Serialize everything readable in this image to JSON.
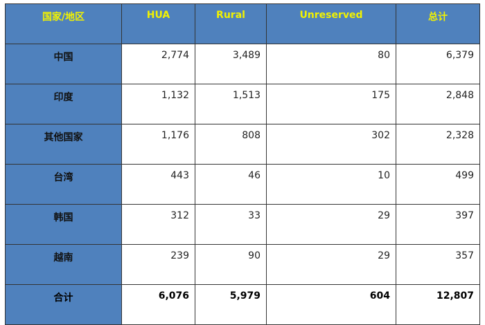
{
  "headers": [
    "国家/地区",
    "HUA",
    "Rural",
    "Unreserved",
    "总计"
  ],
  "rows": [
    {
      "label": "中国",
      "values": [
        "2,774",
        "3,489",
        "80",
        "6,379"
      ]
    },
    {
      "label": "印度",
      "values": [
        "1,132",
        "1,513",
        "175",
        "2,848"
      ]
    },
    {
      "label": "其他国家",
      "values": [
        "1,176",
        "808",
        "302",
        "2,328"
      ]
    },
    {
      "label": "台湾",
      "values": [
        "443",
        "46",
        "10",
        "499"
      ]
    },
    {
      "label": "韩国",
      "values": [
        "312",
        "33",
        "29",
        "397"
      ]
    },
    {
      "label": "越南",
      "values": [
        "239",
        "90",
        "29",
        "357"
      ]
    }
  ],
  "total": {
    "label": "合计",
    "values": [
      "6,076",
      "5,979",
      "604",
      "12,807"
    ]
  },
  "colors": {
    "header_bg": "#4f81bd",
    "header_text": "#f2f200"
  }
}
